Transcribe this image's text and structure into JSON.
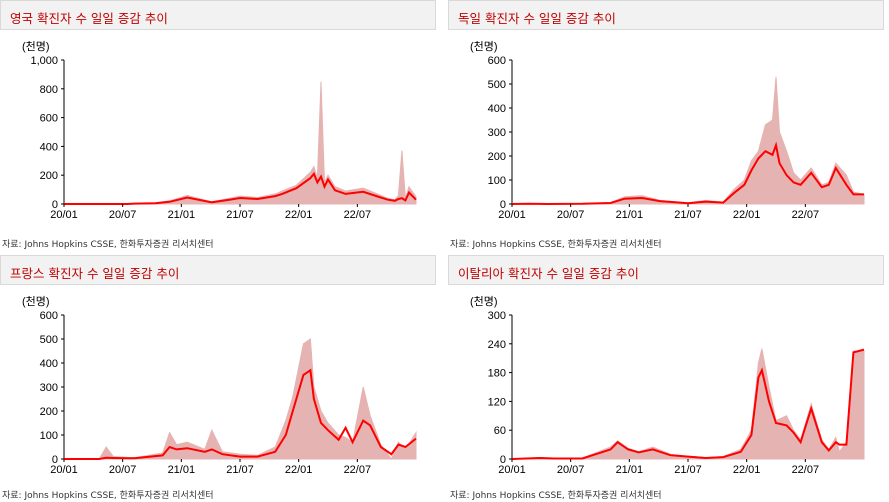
{
  "source_text": "자료: Johns Hopkins CSSE, 한화투자증권 리서치센터",
  "colors": {
    "title": "#c00000",
    "daily": "#e6b3b3",
    "avg": "#ff0000",
    "axis": "#000000"
  },
  "chart_data": [
    {
      "type": "area",
      "title": "영국 확진자 수 일일 증감 추이",
      "ylabel": "(천명)",
      "ylim": [
        0,
        1000
      ],
      "yticks": [
        "0",
        "200",
        "400",
        "600",
        "800",
        "1,000"
      ],
      "xticks": [
        "20/01",
        "20/07",
        "21/01",
        "21/07",
        "22/01",
        "22/07"
      ],
      "series": [
        {
          "kind": "daily",
          "x": [
            0,
            0.1,
            0.18,
            0.2,
            0.26,
            0.3,
            0.35,
            0.42,
            0.47,
            0.5,
            0.55,
            0.6,
            0.62,
            0.66,
            0.7,
            0.71,
            0.72,
            0.73,
            0.74,
            0.75,
            0.77,
            0.8,
            0.85,
            0.9,
            0.92,
            0.94,
            0.95,
            0.96,
            0.97,
            0.98,
            1.0
          ],
          "y": [
            0,
            0,
            0,
            5,
            8,
            22,
            60,
            15,
            40,
            55,
            45,
            70,
            90,
            130,
            220,
            260,
            180,
            850,
            150,
            200,
            120,
            90,
            110,
            60,
            40,
            30,
            60,
            370,
            40,
            120,
            50
          ]
        },
        {
          "kind": "avg",
          "x": [
            0,
            0.1,
            0.18,
            0.2,
            0.26,
            0.3,
            0.35,
            0.42,
            0.47,
            0.5,
            0.55,
            0.6,
            0.62,
            0.66,
            0.7,
            0.71,
            0.72,
            0.73,
            0.74,
            0.75,
            0.77,
            0.8,
            0.85,
            0.9,
            0.92,
            0.94,
            0.95,
            0.96,
            0.97,
            0.98,
            1.0
          ],
          "y": [
            0,
            0,
            0,
            3,
            5,
            15,
            45,
            12,
            30,
            42,
            35,
            55,
            70,
            110,
            180,
            210,
            150,
            190,
            120,
            170,
            95,
            70,
            85,
            45,
            30,
            22,
            35,
            40,
            25,
            80,
            30
          ]
        }
      ]
    },
    {
      "type": "area",
      "title": "독일 확진자 수 일일 증감 추이",
      "ylabel": "(천명)",
      "ylim": [
        0,
        600
      ],
      "yticks": [
        "0",
        "100",
        "200",
        "300",
        "400",
        "500",
        "600"
      ],
      "xticks": [
        "20/01",
        "20/07",
        "21/01",
        "21/07",
        "22/01",
        "22/07"
      ],
      "series": [
        {
          "kind": "daily",
          "x": [
            0,
            0.05,
            0.1,
            0.2,
            0.28,
            0.32,
            0.37,
            0.42,
            0.5,
            0.55,
            0.6,
            0.63,
            0.66,
            0.68,
            0.7,
            0.72,
            0.74,
            0.75,
            0.76,
            0.78,
            0.8,
            0.82,
            0.85,
            0.88,
            0.9,
            0.92,
            0.95,
            0.97,
            1.0
          ],
          "y": [
            0,
            2,
            0,
            2,
            6,
            30,
            35,
            15,
            5,
            15,
            8,
            60,
            100,
            180,
            220,
            330,
            350,
            530,
            300,
            220,
            130,
            100,
            150,
            80,
            90,
            170,
            120,
            50,
            40
          ]
        },
        {
          "kind": "avg",
          "x": [
            0,
            0.05,
            0.1,
            0.2,
            0.28,
            0.32,
            0.37,
            0.42,
            0.5,
            0.55,
            0.6,
            0.63,
            0.66,
            0.68,
            0.7,
            0.72,
            0.74,
            0.75,
            0.76,
            0.78,
            0.8,
            0.82,
            0.85,
            0.88,
            0.9,
            0.92,
            0.95,
            0.97,
            1.0
          ],
          "y": [
            0,
            1,
            0,
            1,
            4,
            22,
            25,
            12,
            3,
            10,
            6,
            45,
            80,
            140,
            190,
            220,
            205,
            245,
            170,
            120,
            90,
            80,
            130,
            70,
            80,
            150,
            80,
            40,
            40
          ]
        }
      ]
    },
    {
      "type": "area",
      "title": "프랑스 확진자 수 일일 증감 추이",
      "ylabel": "(천명)",
      "ylim": [
        0,
        600
      ],
      "yticks": [
        "0",
        "100",
        "200",
        "300",
        "400",
        "500",
        "600"
      ],
      "xticks": [
        "20/01",
        "20/07",
        "21/01",
        "21/07",
        "22/01",
        "22/07"
      ],
      "series": [
        {
          "kind": "daily",
          "x": [
            0,
            0.1,
            0.12,
            0.14,
            0.2,
            0.28,
            0.3,
            0.32,
            0.35,
            0.4,
            0.42,
            0.45,
            0.5,
            0.55,
            0.6,
            0.63,
            0.65,
            0.68,
            0.7,
            0.71,
            0.73,
            0.75,
            0.78,
            0.8,
            0.82,
            0.85,
            0.87,
            0.9,
            0.93,
            0.95,
            0.97,
            1.0
          ],
          "y": [
            0,
            0,
            50,
            10,
            5,
            25,
            110,
            60,
            70,
            40,
            120,
            30,
            20,
            15,
            50,
            160,
            260,
            480,
            500,
            300,
            200,
            150,
            100,
            90,
            70,
            300,
            180,
            60,
            0,
            70,
            40,
            110
          ]
        },
        {
          "kind": "avg",
          "x": [
            0,
            0.1,
            0.12,
            0.14,
            0.2,
            0.28,
            0.3,
            0.32,
            0.35,
            0.4,
            0.42,
            0.45,
            0.5,
            0.55,
            0.6,
            0.63,
            0.65,
            0.68,
            0.7,
            0.71,
            0.73,
            0.75,
            0.78,
            0.8,
            0.82,
            0.85,
            0.87,
            0.9,
            0.93,
            0.95,
            0.97,
            1.0
          ],
          "y": [
            0,
            0,
            5,
            4,
            3,
            15,
            50,
            40,
            45,
            30,
            40,
            20,
            10,
            10,
            30,
            100,
            200,
            350,
            370,
            250,
            150,
            120,
            80,
            130,
            70,
            160,
            140,
            50,
            20,
            60,
            50,
            85
          ]
        }
      ]
    },
    {
      "type": "area",
      "title": "이탈리아 확진자 수 일일 증감 추이",
      "ylabel": "(천명)",
      "ylim": [
        0,
        300
      ],
      "yticks": [
        "0",
        "60",
        "120",
        "180",
        "240",
        "300"
      ],
      "xticks": [
        "20/01",
        "20/07",
        "21/01",
        "21/07",
        "22/01",
        "22/07"
      ],
      "series": [
        {
          "kind": "daily",
          "x": [
            0,
            0.08,
            0.12,
            0.2,
            0.28,
            0.3,
            0.33,
            0.36,
            0.4,
            0.45,
            0.5,
            0.55,
            0.6,
            0.65,
            0.68,
            0.7,
            0.71,
            0.73,
            0.75,
            0.78,
            0.8,
            0.82,
            0.85,
            0.88,
            0.9,
            0.92,
            0.93,
            0.95,
            0.97,
            1.0
          ],
          "y": [
            0,
            3,
            1,
            2,
            25,
            38,
            22,
            15,
            25,
            10,
            6,
            3,
            5,
            20,
            60,
            200,
            230,
            150,
            80,
            90,
            60,
            40,
            115,
            40,
            20,
            45,
            15,
            35,
            225,
            225
          ]
        },
        {
          "kind": "avg",
          "x": [
            0,
            0.08,
            0.12,
            0.2,
            0.28,
            0.3,
            0.33,
            0.36,
            0.4,
            0.45,
            0.5,
            0.55,
            0.6,
            0.65,
            0.68,
            0.7,
            0.71,
            0.73,
            0.75,
            0.78,
            0.8,
            0.82,
            0.85,
            0.88,
            0.9,
            0.92,
            0.93,
            0.95,
            0.97,
            1.0
          ],
          "y": [
            0,
            2,
            1,
            1,
            20,
            35,
            20,
            14,
            20,
            8,
            5,
            2,
            4,
            15,
            50,
            170,
            185,
            120,
            75,
            70,
            55,
            35,
            105,
            35,
            18,
            35,
            30,
            30,
            222,
            228
          ]
        }
      ]
    }
  ]
}
